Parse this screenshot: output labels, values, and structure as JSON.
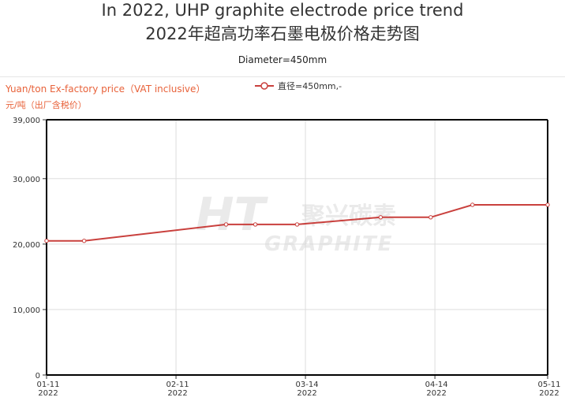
{
  "header": {
    "title_en": "In 2022, UHP graphite electrode price trend",
    "title_zh": "2022年超高功率石墨电极价格走势图",
    "subtitle": "Diameter=450mm"
  },
  "y_unit": {
    "en": "Yuan/ton  Ex-factory price（VAT inclusive）",
    "zh": "元/吨（出厂含税价）"
  },
  "colors": {
    "series": "#c9403d",
    "grid": "#dddddd",
    "axis": "#000000"
  },
  "chart_data": {
    "type": "line",
    "title": "In 2022, UHP graphite electrode price trend",
    "subtitle": "Diameter=450mm",
    "xlabel": "",
    "ylabel": "Yuan/ton  Ex-factory price (VAT inclusive)",
    "x_range": [
      0,
      120
    ],
    "ylim": [
      0,
      39000
    ],
    "y_ticks": [
      0,
      10000,
      20000,
      30000,
      39000
    ],
    "y_tick_labels": [
      "0",
      "10,000",
      "20,000",
      "30,000",
      "39,000"
    ],
    "x_ticks": [
      {
        "x": 0,
        "line1": "01-11",
        "line2": "2022"
      },
      {
        "x": 31,
        "line1": "02-11",
        "line2": "2022"
      },
      {
        "x": 62,
        "line1": "03-14",
        "line2": "2022"
      },
      {
        "x": 93,
        "line1": "04-14",
        "line2": "2022"
      },
      {
        "x": 120,
        "line1": "05-11",
        "line2": "2022"
      }
    ],
    "grid": true,
    "legend": "top-center",
    "series": [
      {
        "name": "直径=450mm,-",
        "points": [
          {
            "x": 0,
            "y": 20500
          },
          {
            "x": 9,
            "y": 20500
          },
          {
            "x": 43,
            "y": 23000
          },
          {
            "x": 50,
            "y": 23000
          },
          {
            "x": 60,
            "y": 23000
          },
          {
            "x": 80,
            "y": 24100
          },
          {
            "x": 92,
            "y": 24100
          },
          {
            "x": 102,
            "y": 26000
          },
          {
            "x": 120,
            "y": 26000
          }
        ]
      }
    ]
  },
  "watermark": {
    "brand": "聚兴碳素",
    "word": "GRAPHITE"
  }
}
